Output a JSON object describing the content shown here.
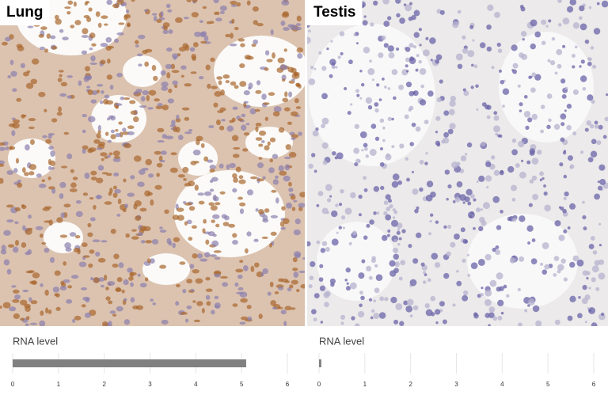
{
  "chart_data": [
    {
      "type": "bar",
      "title": "Lung",
      "xlabel": "RNA level",
      "values": [
        5.1
      ],
      "color": "#808080",
      "xlim": [
        0,
        6
      ],
      "xticks": [
        0,
        1,
        2,
        3,
        4,
        5,
        6
      ]
    },
    {
      "type": "bar",
      "title": "Testis",
      "xlabel": "RNA level",
      "values": [
        0.05
      ],
      "color": "#808080",
      "xlim": [
        0,
        6
      ],
      "xticks": [
        0,
        1,
        2,
        3,
        4,
        5,
        6
      ]
    }
  ]
}
